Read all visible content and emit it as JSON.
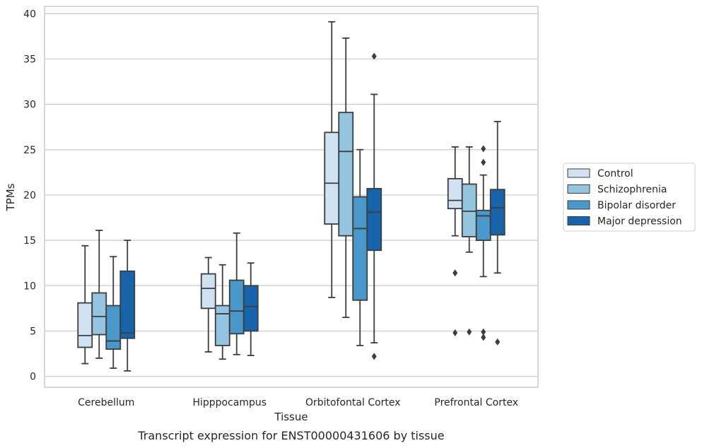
{
  "chart_data": {
    "type": "box",
    "xlabel": "Tissue",
    "ylabel": "TPMs",
    "caption": "Transcript expression for ENST00000431606 by tissue",
    "ylim": [
      -1.2,
      40.8
    ],
    "yticks": [
      0,
      5,
      10,
      15,
      20,
      25,
      30,
      35,
      40
    ],
    "grid": "horizontal",
    "legend_position": "outside-right",
    "categories": [
      "Cerebellum",
      "Hipppocampus",
      "Orbitofontal Cortex",
      "Prefrontal Cortex"
    ],
    "series": [
      {
        "name": "Control",
        "color": "#d0e1f2",
        "boxes": [
          {
            "whislo": 1.4,
            "q1": 3.2,
            "med": 4.5,
            "q3": 8.1,
            "whishi": 14.4,
            "fliers": []
          },
          {
            "whislo": 2.7,
            "q1": 7.5,
            "med": 9.7,
            "q3": 11.3,
            "whishi": 13.1,
            "fliers": []
          },
          {
            "whislo": 8.7,
            "q1": 16.8,
            "med": 21.3,
            "q3": 26.9,
            "whishi": 39.1,
            "fliers": []
          },
          {
            "whislo": 15.5,
            "q1": 18.5,
            "med": 19.4,
            "q3": 21.8,
            "whishi": 25.3,
            "fliers": [
              11.4,
              4.8
            ]
          }
        ]
      },
      {
        "name": "Schizophrenia",
        "color": "#94c4df",
        "boxes": [
          {
            "whislo": 2.0,
            "q1": 4.6,
            "med": 6.6,
            "q3": 9.2,
            "whishi": 16.1,
            "fliers": []
          },
          {
            "whislo": 1.9,
            "q1": 3.4,
            "med": 6.9,
            "q3": 7.8,
            "whishi": 12.3,
            "fliers": []
          },
          {
            "whislo": 6.5,
            "q1": 15.5,
            "med": 24.8,
            "q3": 29.1,
            "whishi": 37.3,
            "fliers": []
          },
          {
            "whislo": 13.7,
            "q1": 15.4,
            "med": 18.2,
            "q3": 21.2,
            "whishi": 25.3,
            "fliers": [
              4.9
            ]
          }
        ]
      },
      {
        "name": "Bipolar disorder",
        "color": "#4a98c9",
        "boxes": [
          {
            "whislo": 0.9,
            "q1": 3.0,
            "med": 3.9,
            "q3": 7.8,
            "whishi": 13.2,
            "fliers": []
          },
          {
            "whislo": 2.4,
            "q1": 4.7,
            "med": 7.2,
            "q3": 10.6,
            "whishi": 15.8,
            "fliers": []
          },
          {
            "whislo": 3.4,
            "q1": 8.4,
            "med": 16.3,
            "q3": 19.8,
            "whishi": 25.0,
            "fliers": []
          },
          {
            "whislo": 11.0,
            "q1": 15.0,
            "med": 17.7,
            "q3": 18.3,
            "whishi": 22.2,
            "fliers": [
              25.1,
              23.6,
              4.9,
              4.3
            ]
          }
        ]
      },
      {
        "name": "Major depression",
        "color": "#1764ab",
        "boxes": [
          {
            "whislo": 0.6,
            "q1": 4.2,
            "med": 4.8,
            "q3": 11.6,
            "whishi": 15.0,
            "fliers": []
          },
          {
            "whislo": 2.3,
            "q1": 5.0,
            "med": 7.7,
            "q3": 10.0,
            "whishi": 12.5,
            "fliers": []
          },
          {
            "whislo": 3.7,
            "q1": 13.9,
            "med": 18.1,
            "q3": 20.7,
            "whishi": 31.1,
            "fliers": [
              35.3,
              2.2
            ]
          },
          {
            "whislo": 11.4,
            "q1": 15.6,
            "med": 18.6,
            "q3": 20.6,
            "whishi": 28.1,
            "fliers": [
              3.8
            ]
          }
        ]
      }
    ]
  }
}
